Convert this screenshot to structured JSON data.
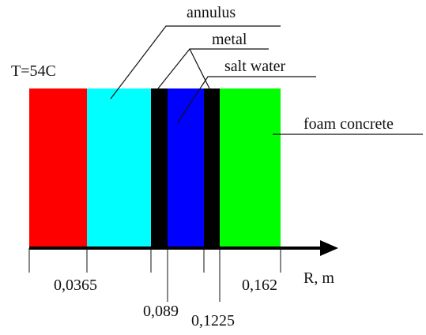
{
  "labels": {
    "temperature": "T=54C",
    "annulus": "annulus",
    "metal": "metal",
    "salt_water": "salt water",
    "foam_concrete": "foam concrete",
    "axis": "R, m"
  },
  "ticks": [
    "0,0365",
    "0,089",
    "0,1225",
    "0,162"
  ]
}
